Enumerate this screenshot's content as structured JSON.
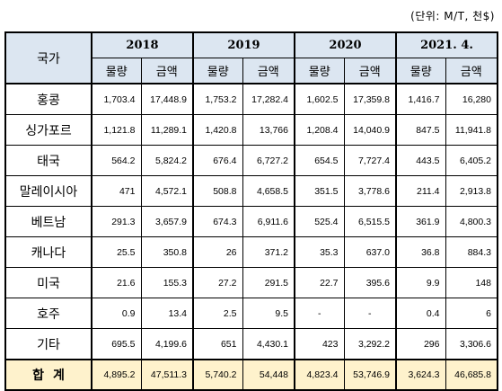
{
  "unit_note": "(단위: M/T, 천$)",
  "header": {
    "country_label": "국가",
    "years": [
      "2018",
      "2019",
      "2020",
      "2021. 4."
    ],
    "volume_label": "물량",
    "amount_label": "금액"
  },
  "rows": [
    {
      "name": "홍콩",
      "values": [
        "1,703.4",
        "17,448.9",
        "1,753.2",
        "17,282.4",
        "1,602.5",
        "17,359.8",
        "1,416.7",
        "16,280"
      ]
    },
    {
      "name": "싱가포르",
      "values": [
        "1,121.8",
        "11,289.1",
        "1,420.8",
        "13,766",
        "1,208.4",
        "14,040.9",
        "847.5",
        "11,941.8"
      ]
    },
    {
      "name": "태국",
      "values": [
        "564.2",
        "5,824.2",
        "676.4",
        "6,727.2",
        "654.5",
        "7,727.4",
        "443.5",
        "6,405.2"
      ]
    },
    {
      "name": "말레이시아",
      "values": [
        "471",
        "4,572.1",
        "508.8",
        "4,658.5",
        "351.5",
        "3,778.6",
        "211.4",
        "2,913.8"
      ]
    },
    {
      "name": "베트남",
      "values": [
        "291.3",
        "3,657.9",
        "674.3",
        "6,911.6",
        "525.4",
        "6,515.5",
        "361.9",
        "4,800.3"
      ]
    },
    {
      "name": "캐나다",
      "values": [
        "25.5",
        "350.8",
        "26",
        "371.2",
        "35.3",
        "637.0",
        "36.8",
        "884.3"
      ]
    },
    {
      "name": "미국",
      "values": [
        "21.6",
        "155.3",
        "27.2",
        "291.5",
        "22.7",
        "395.6",
        "9.9",
        "148"
      ]
    },
    {
      "name": "호주",
      "values": [
        "0.9",
        "13.4",
        "2.5",
        "9.5",
        "-",
        "-",
        "0.4",
        "6"
      ]
    },
    {
      "name": "기타",
      "values": [
        "695.5",
        "4,199.6",
        "651",
        "4,430.1",
        "423",
        "3,292.2",
        "296",
        "3,306.6"
      ]
    }
  ],
  "total": {
    "name": "합계",
    "values": [
      "4,895.2",
      "47,511.3",
      "5,740.2",
      "54,448",
      "4,823.4",
      "53,746.9",
      "3,624.3",
      "46,685.8"
    ]
  },
  "colors": {
    "header_bg": "#dce6f1",
    "total_bg": "#fef2cc"
  }
}
